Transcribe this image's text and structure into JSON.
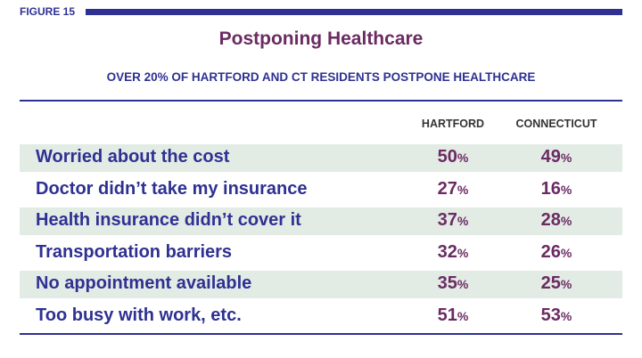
{
  "figure_label": "FIGURE 15",
  "title": "Postponing Healthcare",
  "subtitle": "OVER 20% OF HARTFORD AND CT RESIDENTS POSTPONE HEALTHCARE",
  "table": {
    "columns": [
      "HARTFORD",
      "CONNECTICUT"
    ],
    "unit": "%",
    "rows": [
      {
        "label": "Worried about the cost",
        "values": [
          50,
          49
        ]
      },
      {
        "label": "Doctor didn’t take my insurance",
        "values": [
          27,
          16
        ]
      },
      {
        "label": "Health insurance didn’t cover it",
        "values": [
          37,
          28
        ]
      },
      {
        "label": "Transportation barriers",
        "values": [
          32,
          26
        ]
      },
      {
        "label": "No appointment available",
        "values": [
          35,
          25
        ]
      },
      {
        "label": "Too busy with work, etc.",
        "values": [
          51,
          53
        ]
      }
    ]
  }
}
